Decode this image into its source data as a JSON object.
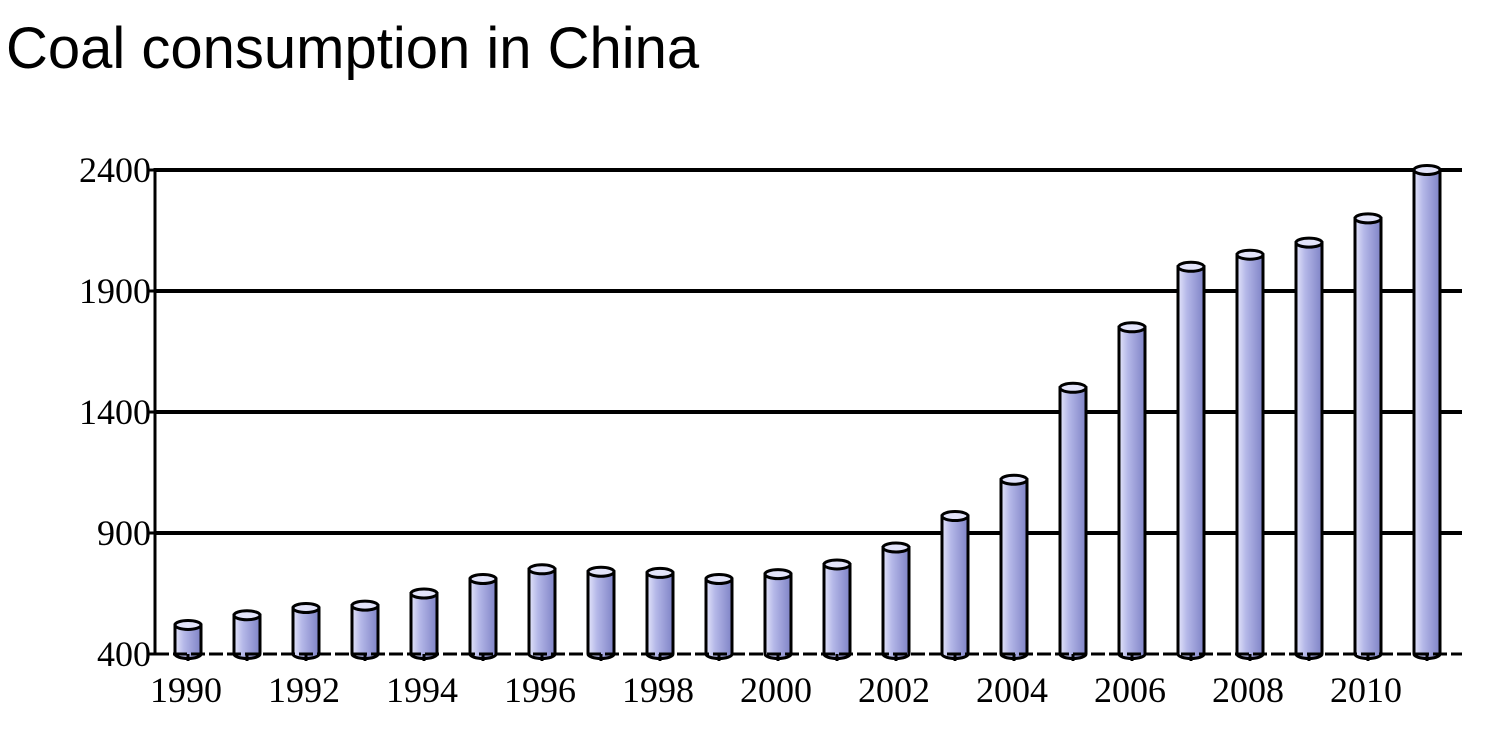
{
  "chart_data": {
    "type": "bar",
    "title": "Coal consumption in China",
    "xlabel": "",
    "ylabel": "",
    "categories": [
      "1990",
      "1991",
      "1992",
      "1993",
      "1994",
      "1995",
      "1996",
      "1997",
      "1998",
      "1999",
      "2000",
      "2001",
      "2002",
      "2003",
      "2004",
      "2005",
      "2006",
      "2007",
      "2008",
      "2009",
      "2010",
      "2011"
    ],
    "x_tick_labels": [
      "1990",
      "1992",
      "1994",
      "1996",
      "1998",
      "2000",
      "2002",
      "2004",
      "2006",
      "2008",
      "2010"
    ],
    "y_tick_labels": [
      "400",
      "900",
      "1400",
      "1900",
      "2400"
    ],
    "y_ticks": [
      400,
      900,
      1400,
      1900,
      2400
    ],
    "values": [
      520,
      560,
      590,
      600,
      650,
      710,
      750,
      740,
      735,
      710,
      730,
      770,
      840,
      970,
      1120,
      1500,
      1750,
      2000,
      2050,
      2100,
      2200,
      2400
    ],
    "ylim": [
      400,
      2400
    ],
    "grid": true,
    "legend": "none",
    "colors": {
      "bar_fill": "#b4b7e8",
      "bar_highlight": "#e3e4fa",
      "bar_shade": "#7f83c6",
      "outline": "#000000",
      "gridline": "#000000"
    }
  }
}
